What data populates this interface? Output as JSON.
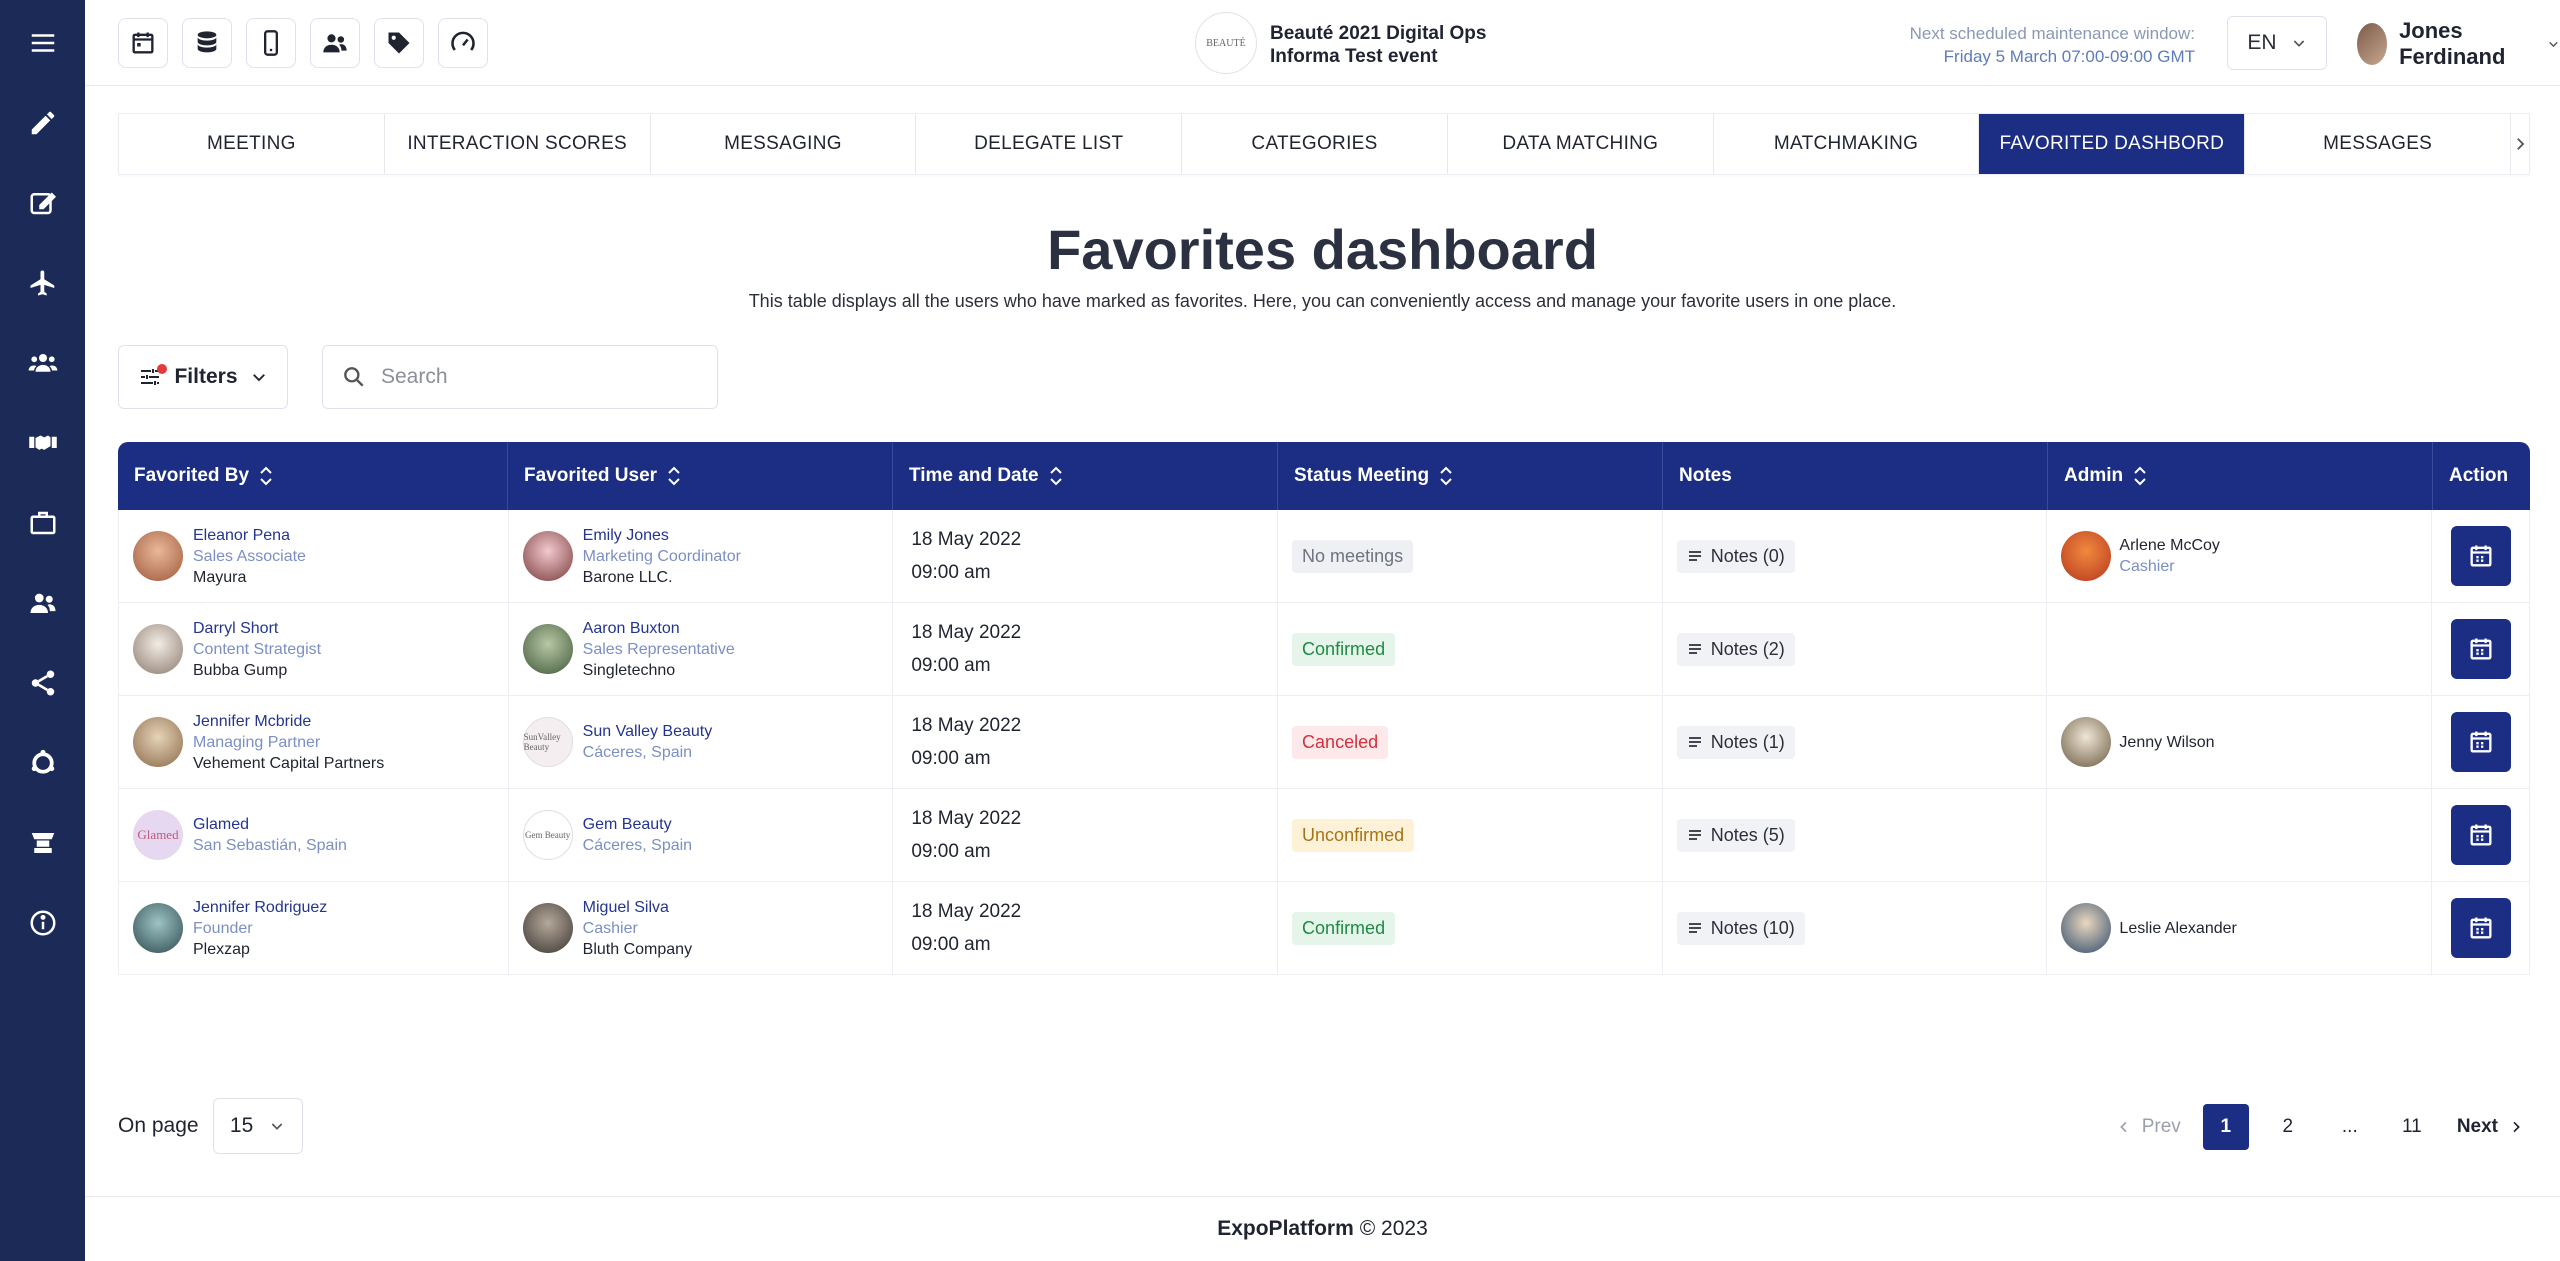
{
  "sidebar": {
    "items": [
      {
        "icon": "menu-icon"
      },
      {
        "icon": "pencil-icon"
      },
      {
        "icon": "edit-square-icon"
      },
      {
        "icon": "airplane-icon"
      },
      {
        "icon": "users-group-icon"
      },
      {
        "icon": "handshake-icon"
      },
      {
        "icon": "briefcase-icon"
      },
      {
        "icon": "people-icon"
      },
      {
        "icon": "share-icon"
      },
      {
        "icon": "refresh-ring-icon"
      },
      {
        "icon": "booth-icon"
      },
      {
        "icon": "info-icon"
      }
    ]
  },
  "toolbar": {
    "icons": [
      "calendar-icon",
      "database-icon",
      "mobile-icon",
      "users-icon",
      "tag-icon",
      "speedometer-icon"
    ]
  },
  "event": {
    "logo_text": "BEAUTÉ",
    "name": "Beauté 2021 Digital Ops",
    "subtitle": "Informa Test event"
  },
  "maintenance": {
    "label": "Next scheduled maintenance window:",
    "date": "Friday 5 March 07:00-09:00 GMT"
  },
  "language": "EN",
  "user": {
    "name": "Jones Ferdinand"
  },
  "tabs": [
    {
      "label": "MEETING",
      "active": false
    },
    {
      "label": "INTERACTION SCORES",
      "active": false
    },
    {
      "label": "MESSAGING",
      "active": false
    },
    {
      "label": "DELEGATE LIST",
      "active": false
    },
    {
      "label": "CATEGORIES",
      "active": false
    },
    {
      "label": "DATA MATCHING",
      "active": false
    },
    {
      "label": "MATCHMAKING",
      "active": false
    },
    {
      "label": "FAVORITED DASHBORD",
      "active": true
    },
    {
      "label": "MESSAGES",
      "active": false
    }
  ],
  "page": {
    "title": "Favorites dashboard",
    "subtitle": "This table displays all the users who have marked as favorites. Here, you can conveniently access and manage your favorite users in one place."
  },
  "filters": {
    "label": "Filters"
  },
  "search": {
    "placeholder": "Search"
  },
  "table": {
    "columns": [
      "Favorited By",
      "Favorited User",
      "Time and Date",
      "Status Meeting",
      "Notes",
      "Admin",
      "Action"
    ],
    "rows": [
      {
        "by": {
          "name": "Eleanor Pena",
          "role": "Sales Associate",
          "org": "Mayura"
        },
        "user": {
          "name": "Emily Jones",
          "role": "Marketing Coordinator",
          "org": "Barone LLC."
        },
        "date": "18 May 2022",
        "time": "09:00 am",
        "status": "No meetings",
        "status_kind": "none",
        "notes": "Notes (0)",
        "admin": {
          "name": "Arlene McCoy",
          "role": "Cashier"
        }
      },
      {
        "by": {
          "name": "Darryl Short",
          "role": "Content Strategist",
          "org": "Bubba Gump"
        },
        "user": {
          "name": "Aaron Buxton",
          "role": "Sales Representative",
          "org": "Singletechno"
        },
        "date": "18 May 2022",
        "time": "09:00 am",
        "status": "Confirmed",
        "status_kind": "confirmed",
        "notes": "Notes (2)",
        "admin": {
          "name": "",
          "role": ""
        }
      },
      {
        "by": {
          "name": "Jennifer Mcbride",
          "role": "Managing Partner",
          "org": "Vehement Capital Partners"
        },
        "user": {
          "name": "Sun Valley Beauty",
          "role": "Cáceres, Spain",
          "org": "",
          "logo_text": "SunValley Beauty"
        },
        "date": "18 May 2022",
        "time": "09:00 am",
        "status": "Canceled",
        "status_kind": "canceled",
        "notes": "Notes (1)",
        "admin": {
          "name": "Jenny Wilson",
          "role": ""
        }
      },
      {
        "by": {
          "name": "Glamed",
          "role": "San Sebastián, Spain",
          "org": "",
          "logo_text": "Glamed"
        },
        "user": {
          "name": "Gem Beauty",
          "role": "Cáceres, Spain",
          "org": "",
          "logo_text": "Gem Beauty"
        },
        "date": "18 May 2022",
        "time": "09:00 am",
        "status": "Unconfirmed",
        "status_kind": "unconfirmed",
        "notes": "Notes (5)",
        "admin": {
          "name": "",
          "role": ""
        }
      },
      {
        "by": {
          "name": "Jennifer Rodriguez",
          "role": "Founder",
          "org": "Plexzap"
        },
        "user": {
          "name": "Miguel Silva",
          "role": "Cashier",
          "org": "Bluth Company"
        },
        "date": "18 May 2022",
        "time": "09:00 am",
        "status": "Confirmed",
        "status_kind": "confirmed",
        "notes": "Notes (10)",
        "admin": {
          "name": "Leslie Alexander",
          "role": ""
        }
      }
    ]
  },
  "pagination": {
    "on_page_label": "On page",
    "page_size": "15",
    "prev": "Prev",
    "pages": [
      "1",
      "2",
      "...",
      "11"
    ],
    "current": "1",
    "next": "Next"
  },
  "footer": {
    "brand": "ExpoPlatform",
    "copyright": "© 2023"
  },
  "colors": {
    "sidebar": "#1c2a57",
    "accent": "#1c2e83"
  }
}
